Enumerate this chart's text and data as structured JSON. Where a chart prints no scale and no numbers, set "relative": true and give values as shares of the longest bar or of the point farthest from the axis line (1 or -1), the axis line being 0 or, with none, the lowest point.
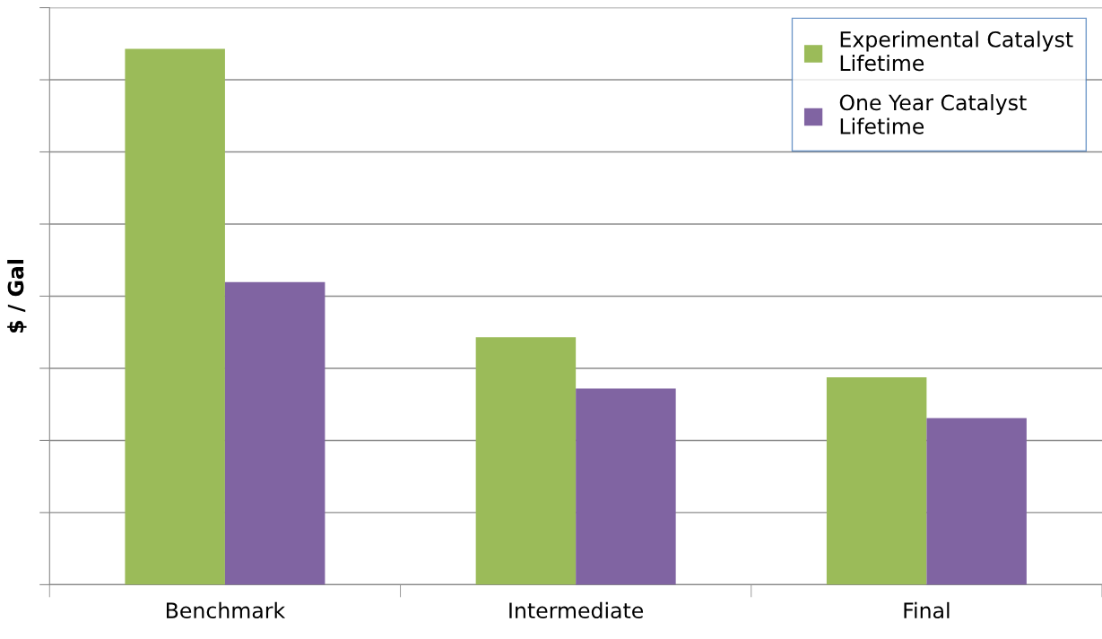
{
  "chart_data": {
    "type": "bar",
    "ylabel": "$ / Gal",
    "relative": true,
    "grid": "y",
    "legend": "top right",
    "categories": [
      "Benchmark",
      "Intermediate",
      "Final"
    ],
    "series": [
      {
        "name": "Experimental Catalyst Lifetime",
        "color": "#9bbb59",
        "values": [
          1,
          0.462,
          0.387
        ]
      },
      {
        "name": "One Year Catalyst Lifetime",
        "color": "#8064a2",
        "values": [
          0.565,
          0.366,
          0.311
        ]
      }
    ]
  }
}
